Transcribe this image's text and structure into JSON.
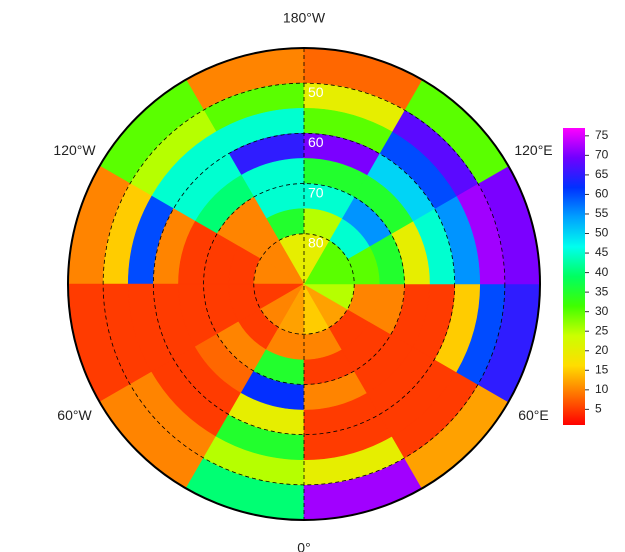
{
  "chart_data": {
    "type": "polar_map",
    "lat_lim": [
      43,
      90
    ],
    "lat_edges": [
      43,
      50,
      55,
      60,
      65,
      70,
      75,
      80,
      90
    ],
    "lon_edges": [
      -180,
      -150,
      -120,
      -90,
      -60,
      -30,
      0,
      30,
      60,
      90,
      120,
      150,
      180
    ],
    "values": [
      [
        10,
        30,
        10,
        5,
        10,
        40,
        72,
        12,
        65,
        70,
        30,
        8
      ],
      [
        30,
        25,
        15,
        5,
        10,
        25,
        20,
        5,
        60,
        72,
        68,
        20
      ],
      [
        45,
        45,
        60,
        5,
        5,
        35,
        5,
        5,
        15,
        55,
        60,
        30
      ],
      [
        65,
        45,
        10,
        5,
        5,
        20,
        5,
        5,
        5,
        45,
        50,
        70
      ],
      [
        45,
        40,
        5,
        5,
        8,
        62,
        10,
        5,
        5,
        20,
        35,
        35
      ],
      [
        45,
        10,
        5,
        5,
        10,
        35,
        5,
        5,
        10,
        35,
        55,
        45
      ],
      [
        35,
        10,
        5,
        5,
        5,
        10,
        10,
        5,
        10,
        30,
        45,
        25
      ],
      [
        20,
        10,
        10,
        5,
        10,
        12,
        15,
        12,
        25,
        30,
        30,
        20
      ]
    ],
    "colormap": [
      "#ff0000",
      "#ff7000",
      "#ffdd00",
      "#ccff00",
      "#40ff00",
      "#00ff60",
      "#00ffee",
      "#00a0ff",
      "#0030ff",
      "#7000ff",
      "#ff00ff"
    ],
    "clim": [
      1,
      77
    ],
    "cticks": [
      5,
      10,
      15,
      20,
      25,
      30,
      35,
      40,
      45,
      50,
      55,
      60,
      65,
      70,
      75
    ],
    "lat_ticks": [
      50,
      60,
      70,
      80
    ],
    "lon_labels": [
      {
        "value": 180,
        "label": "180°W"
      },
      {
        "value": 0,
        "label": "0°"
      },
      {
        "value": -120,
        "label": "120°W"
      },
      {
        "value": 120,
        "label": "120°E"
      },
      {
        "value": -60,
        "label": "60°W"
      },
      {
        "value": 60,
        "label": "60°E"
      }
    ]
  }
}
